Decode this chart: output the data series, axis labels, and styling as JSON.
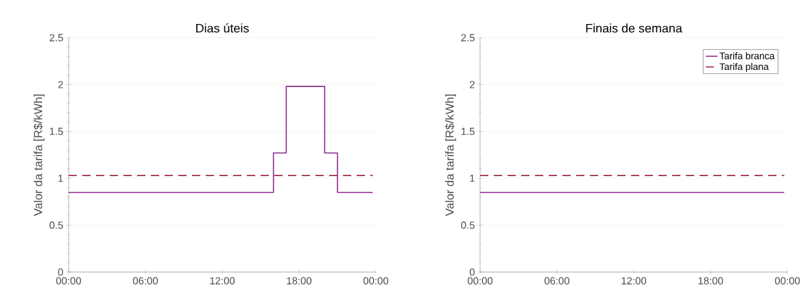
{
  "chart_data": [
    {
      "type": "step",
      "title": "Dias úteis",
      "ylabel": "Valor da tarifa [R$/kWh]",
      "xlim": [
        0,
        24
      ],
      "ylim": [
        0,
        2.5
      ],
      "xticks": [
        {
          "value": 0,
          "label": "00:00"
        },
        {
          "value": 6,
          "label": "06:00"
        },
        {
          "value": 12,
          "label": "12:00"
        },
        {
          "value": 18,
          "label": "18:00"
        },
        {
          "value": 24,
          "label": "00:00"
        }
      ],
      "yticks": [
        0,
        0.5,
        1,
        1.5,
        2,
        2.5
      ],
      "grid": "y",
      "legend": false,
      "series": [
        {
          "color": "#8e2a91",
          "x": [
            0,
            16,
            17,
            20,
            21,
            23.75
          ],
          "values": [
            0.85,
            1.27,
            1.98,
            1.27,
            0.85,
            0.85
          ],
          "line_style": "solid"
        },
        {
          "type": "line",
          "color": "#a3283c",
          "x": [
            0,
            23.75
          ],
          "values": [
            1.03,
            1.03
          ],
          "line_style": "dashed"
        }
      ]
    },
    {
      "type": "step",
      "title": "Finais de semana",
      "ylabel": "Valor da tarifa [R$/kWh]",
      "xlim": [
        0,
        24
      ],
      "ylim": [
        0,
        2.5
      ],
      "xticks": [
        {
          "value": 0,
          "label": "00:00"
        },
        {
          "value": 6,
          "label": "06:00"
        },
        {
          "value": 12,
          "label": "12:00"
        },
        {
          "value": 18,
          "label": "18:00"
        },
        {
          "value": 24,
          "label": "00:00"
        }
      ],
      "yticks": [
        0,
        0.5,
        1,
        1.5,
        2,
        2.5
      ],
      "grid": "y",
      "legend": "top right",
      "series": [
        {
          "name": "Tarifa branca",
          "color": "#8e2a91",
          "x": [
            0,
            23.75
          ],
          "values": [
            0.85,
            0.85
          ],
          "line_style": "solid"
        },
        {
          "name": "Tarifa plana",
          "type": "line",
          "color": "#a3283c",
          "x": [
            0,
            23.75
          ],
          "values": [
            1.03,
            1.03
          ],
          "line_style": "dashed"
        }
      ]
    }
  ]
}
